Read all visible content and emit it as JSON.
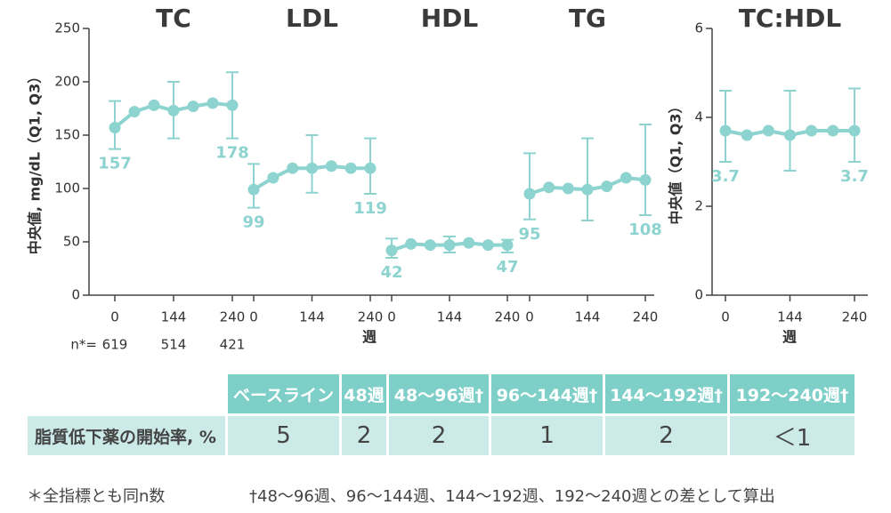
{
  "chart_data": [
    {
      "type": "line",
      "color": "#8dd3cf",
      "ylabel": "中央値, mg/dL（Q1, Q3）",
      "xlabel": "週",
      "ylim": [
        0,
        250
      ],
      "yticks": [
        0,
        50,
        100,
        150,
        200,
        250
      ],
      "n_label": "n*=",
      "n_values": [
        619,
        514,
        421
      ],
      "panels": [
        {
          "title": "TC",
          "categories": [
            "0",
            null,
            null,
            "144",
            null,
            null,
            "240"
          ],
          "values": [
            157,
            172,
            178,
            173,
            177,
            180,
            178
          ],
          "q1": [
            137,
            null,
            null,
            147,
            null,
            null,
            147
          ],
          "q3": [
            182,
            null,
            null,
            200,
            null,
            null,
            209
          ]
        },
        {
          "title": "LDL",
          "categories": [
            "0",
            null,
            null,
            "144",
            null,
            null,
            "240"
          ],
          "values": [
            99,
            110,
            119,
            119,
            121,
            119,
            119
          ],
          "q1": [
            82,
            null,
            null,
            96,
            null,
            null,
            95
          ],
          "q3": [
            123,
            null,
            null,
            150,
            null,
            null,
            147
          ]
        },
        {
          "title": "HDL",
          "categories": [
            "0",
            null,
            null,
            "144",
            null,
            null,
            "240"
          ],
          "values": [
            42,
            48,
            47,
            47,
            49,
            47,
            47
          ],
          "q1": [
            35,
            null,
            null,
            40,
            null,
            null,
            40
          ],
          "q3": [
            53,
            null,
            null,
            55,
            null,
            null,
            52
          ]
        },
        {
          "title": "TG",
          "categories": [
            "0",
            null,
            null,
            "144",
            null,
            null,
            "240"
          ],
          "values": [
            95,
            101,
            100,
            99,
            102,
            110,
            108
          ],
          "q1": [
            71,
            null,
            null,
            70,
            null,
            null,
            75
          ],
          "q3": [
            133,
            null,
            null,
            147,
            null,
            null,
            160
          ]
        }
      ]
    },
    {
      "type": "line",
      "color": "#8dd3cf",
      "ylabel": "中央値（Q1, Q3）",
      "xlabel": "週",
      "ylim": [
        0,
        6
      ],
      "yticks": [
        0,
        2,
        4,
        6
      ],
      "panels": [
        {
          "title": "TC:HDL",
          "categories": [
            "0",
            null,
            null,
            "144",
            null,
            null,
            "240"
          ],
          "values": [
            3.7,
            3.6,
            3.7,
            3.6,
            3.7,
            3.7,
            3.7
          ],
          "q1": [
            3.0,
            null,
            null,
            2.8,
            null,
            null,
            3.0
          ],
          "q3": [
            4.6,
            null,
            null,
            4.6,
            null,
            null,
            4.65
          ]
        }
      ]
    }
  ],
  "table": {
    "header": [
      "ベースライン",
      "48週",
      "48～96週†",
      "96～144週†",
      "144～192週†",
      "192～240週†"
    ],
    "row_label": "脂質低下薬の開始率, %",
    "row": [
      "5",
      "2",
      "2",
      "1",
      "2",
      "＜1"
    ]
  },
  "footnotes": [
    "＊全指標とも同n数",
    "†48～96週、96～144週、144～192週、192～240週との差として算出"
  ]
}
